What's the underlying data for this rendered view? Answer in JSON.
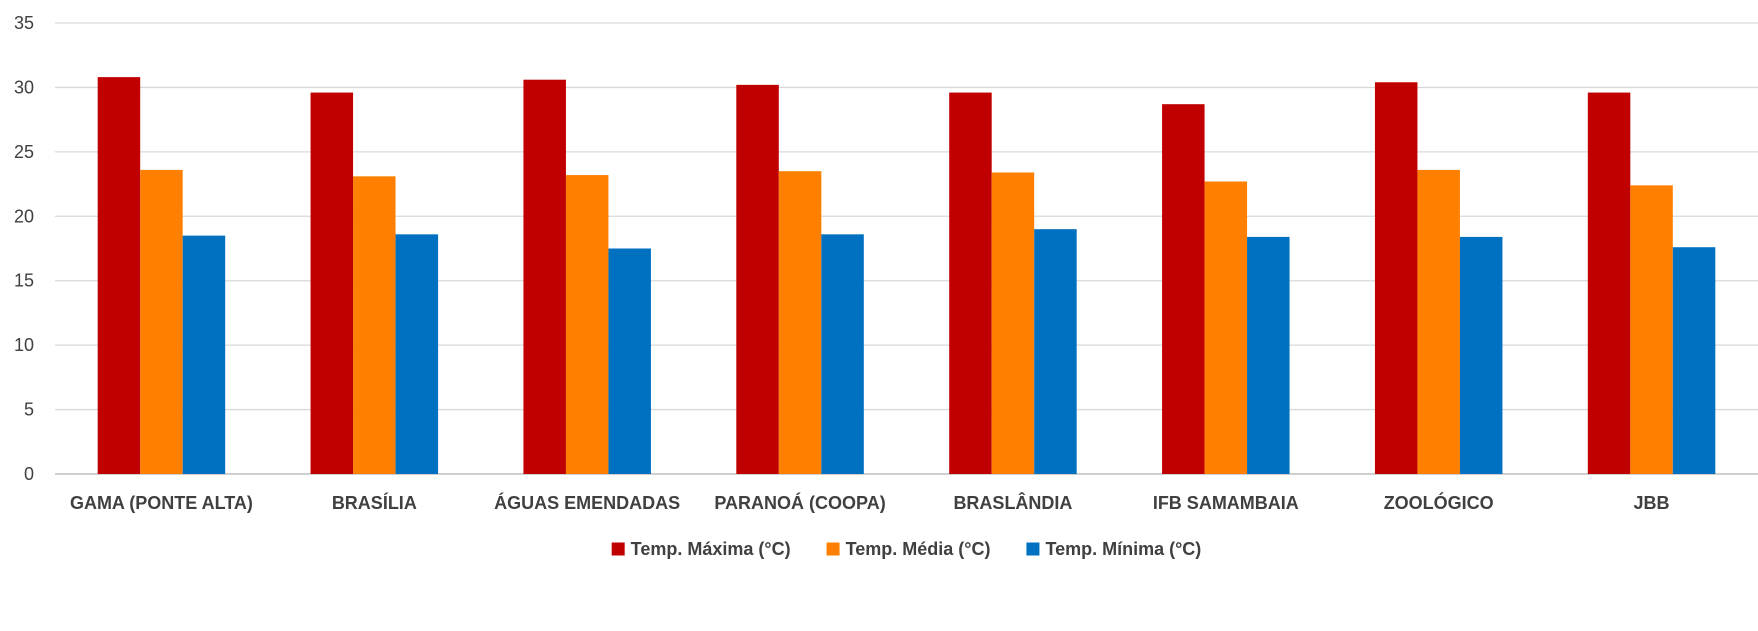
{
  "chart_data": {
    "type": "bar",
    "categories": [
      "GAMA (PONTE ALTA)",
      "BRASÍLIA",
      "ÁGUAS EMENDADAS",
      "PARANOÁ (COOPA)",
      "BRASLÂNDIA",
      "IFB SAMAMBAIA",
      "ZOOLÓGICO",
      "JBB"
    ],
    "series": [
      {
        "name": "Temp. Máxima (°C)",
        "color": "#C00000",
        "values": [
          30.8,
          29.6,
          30.6,
          30.2,
          29.6,
          28.7,
          30.4,
          29.6
        ]
      },
      {
        "name": "Temp. Média (°C)",
        "color": "#FF8000",
        "values": [
          23.6,
          23.1,
          23.2,
          23.5,
          23.4,
          22.7,
          23.6,
          22.4
        ]
      },
      {
        "name": "Temp. Mínima (°C)",
        "color": "#0070C0",
        "values": [
          18.5,
          18.6,
          17.5,
          18.6,
          19.0,
          18.4,
          18.4,
          17.6
        ]
      }
    ],
    "ylim": [
      0,
      35
    ],
    "yticks": [
      "0",
      "5",
      "10",
      "15",
      "20",
      "25",
      "30",
      "35"
    ],
    "grid": true,
    "legend_position": "bottom-center",
    "title": "",
    "xlabel": "",
    "ylabel": ""
  }
}
